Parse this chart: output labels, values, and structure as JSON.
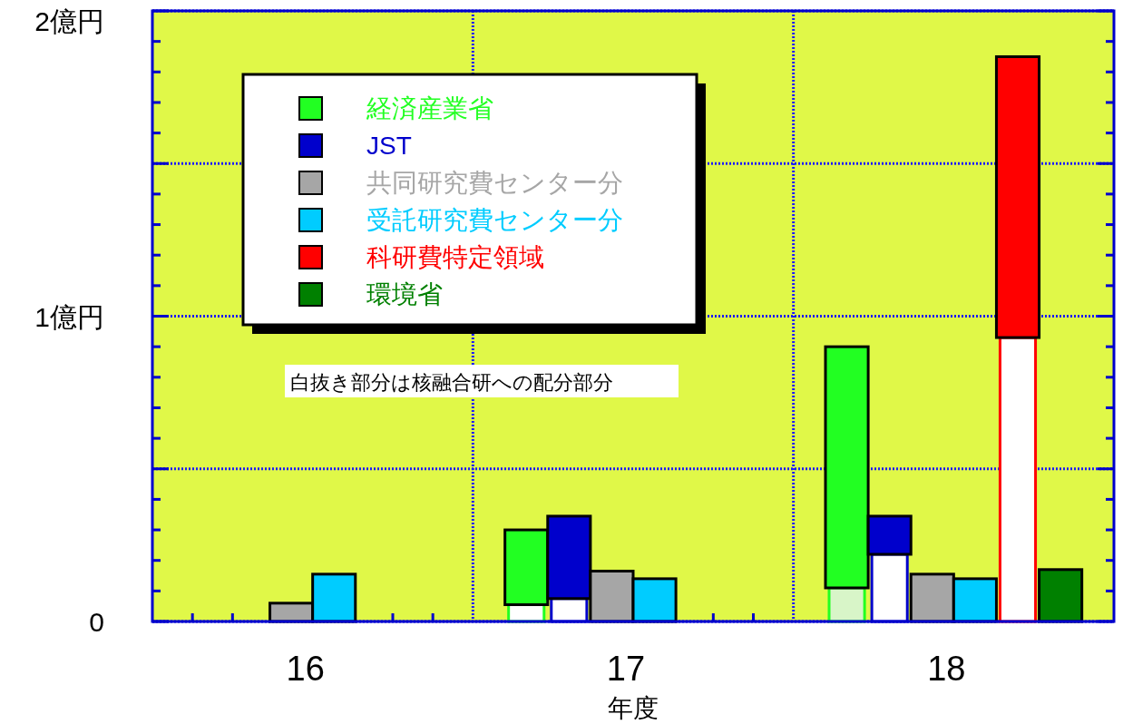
{
  "chart_data": {
    "type": "bar",
    "xlabel": "年度",
    "categories": [
      "16",
      "17",
      "18"
    ],
    "ylim": [
      0,
      2
    ],
    "yticks": [
      {
        "value": 0,
        "label": "0"
      },
      {
        "value": 0.5,
        "label": null
      },
      {
        "value": 1,
        "label": "1億円"
      },
      {
        "value": 1.5,
        "label": null
      },
      {
        "value": 2,
        "label": "2億円"
      }
    ],
    "grid": true,
    "legend": "top left",
    "annotations": [
      "白抜き部分は核融合研への配分部分"
    ],
    "series": [
      {
        "colors": [
          "#ffffff",
          "#ffffff",
          "#d8f5c8"
        ],
        "values": [
          null,
          0.055,
          0.11
        ]
      },
      {
        "name": "経済産業省",
        "color": "#22ff22",
        "values": [
          null,
          0.245,
          0.79
        ],
        "base": [
          null,
          0.055,
          0.11
        ]
      },
      {
        "color": "#ffffff",
        "values": [
          null,
          0.075,
          0.22
        ]
      },
      {
        "name": "JST",
        "color": "#0000cc",
        "values": [
          null,
          0.27,
          0.125
        ],
        "base": [
          null,
          0.075,
          0.22
        ]
      },
      {
        "name": "共同研究費センター分",
        "color": "#a6a6a6",
        "values": [
          0.06,
          0.165,
          0.155
        ]
      },
      {
        "name": "受託研究費センター分",
        "color": "#00ccff",
        "values": [
          0.155,
          0.14,
          0.14
        ]
      },
      {
        "color": "#ffffff",
        "values": [
          null,
          null,
          0.93
        ]
      },
      {
        "name": "科研費特定領域",
        "color": "#ff0000",
        "values": [
          null,
          null,
          0.92
        ],
        "base": [
          null,
          null,
          0.93
        ]
      },
      {
        "name": "環境省",
        "color": "#008000",
        "values": [
          null,
          null,
          0.17
        ]
      }
    ]
  }
}
